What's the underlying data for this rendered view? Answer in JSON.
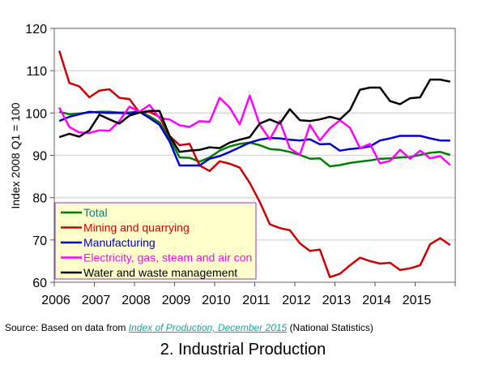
{
  "chart_data": {
    "type": "line",
    "title": "2. Industrial Production",
    "ylabel": "Index 2008 Q1 = 100",
    "xlabel": "",
    "ylim": [
      60,
      120
    ],
    "yticks": [
      "60",
      "70",
      "80",
      "90",
      "100",
      "110",
      "120"
    ],
    "xticks": [
      "2006",
      "2007",
      "2008",
      "2009",
      "2010",
      "2011",
      "2012",
      "2013",
      "2014",
      "2015"
    ],
    "x_unit": "quarter, 2006 Q1 to 2015 Q4",
    "grid": "horizontal",
    "legend_position": "bottom-left",
    "series": [
      {
        "name": "Total",
        "color": "#008000",
        "label_color": "#008080",
        "values": [
          100.3,
          99.7,
          99.9,
          100.1,
          100.3,
          100.3,
          100.1,
          100.1,
          100.4,
          99.2,
          97.8,
          94.0,
          89.5,
          89.4,
          88.5,
          89.5,
          91.1,
          92.1,
          92.7,
          93.0,
          92.4,
          91.5,
          91.3,
          90.8,
          90.1,
          89.2,
          89.3,
          87.4,
          87.7,
          88.2,
          88.5,
          88.8,
          89.2,
          89.3,
          89.5,
          89.6,
          90.1,
          90.6,
          90.8,
          90.1
        ]
      },
      {
        "name": "Mining and quarrying",
        "color": "#cc0000",
        "label_color": "#cc0000",
        "values": [
          114.7,
          107.1,
          106.3,
          103.7,
          105.3,
          105.6,
          103.6,
          103.3,
          100.1,
          100.3,
          99.1,
          94.6,
          92.4,
          92.7,
          87.6,
          86.3,
          88.6,
          88.0,
          87.1,
          83.5,
          79.0,
          73.7,
          72.8,
          72.3,
          69.2,
          67.4,
          67.7,
          61.2,
          62.0,
          64.0,
          65.8,
          65.0,
          64.4,
          64.6,
          62.9,
          63.3,
          64.0,
          69.0,
          70.4,
          68.8
        ]
      },
      {
        "name": "Manufacturing",
        "color": "#0000cc",
        "label_color": "#0000cc",
        "values": [
          98.1,
          99.1,
          99.7,
          100.3,
          100.1,
          100.0,
          100.0,
          99.9,
          100.3,
          98.8,
          97.2,
          93.3,
          87.6,
          87.6,
          87.6,
          89.2,
          89.8,
          90.8,
          91.9,
          93.0,
          93.7,
          94.1,
          94.0,
          93.7,
          93.5,
          93.8,
          92.6,
          92.7,
          91.1,
          91.5,
          91.7,
          92.1,
          93.5,
          94.0,
          94.6,
          94.6,
          94.6,
          94.0,
          93.5,
          93.5
        ]
      },
      {
        "name": "Electricity, gas, steam and air con",
        "color": "#ff00ff",
        "label_color": "#ff00ff",
        "values": [
          101.3,
          96.7,
          95.4,
          95.3,
          95.9,
          95.8,
          98.1,
          101.5,
          100.3,
          101.9,
          98.8,
          98.5,
          97.1,
          96.7,
          98.1,
          97.9,
          103.6,
          101.3,
          97.3,
          104.1,
          97.2,
          93.8,
          98.1,
          91.7,
          90.1,
          97.2,
          93.5,
          96.4,
          98.3,
          96.5,
          91.7,
          92.7,
          88.1,
          88.7,
          91.3,
          89.2,
          91.1,
          89.3,
          89.8,
          87.7
        ]
      },
      {
        "name": "Water and waste management",
        "color": "#000000",
        "label_color": "#000000",
        "values": [
          94.3,
          95.1,
          94.4,
          95.9,
          99.6,
          98.5,
          97.5,
          99.4,
          100.1,
          100.5,
          100.5,
          94.6,
          90.8,
          91.1,
          91.3,
          91.9,
          91.7,
          93.0,
          93.7,
          94.3,
          97.5,
          98.5,
          97.5,
          100.9,
          98.3,
          98.1,
          98.5,
          99.1,
          98.5,
          100.7,
          105.5,
          106.0,
          106.0,
          102.8,
          102.1,
          103.5,
          103.7,
          107.9,
          107.9,
          107.4
        ]
      }
    ]
  },
  "source": {
    "prefix": "Source: Based on data from ",
    "link_text": "Index of Production, December 2015",
    "suffix": " (National Statistics)"
  },
  "colors": {
    "legend_bg": "#ffffcc",
    "legend_border": "#9933cc",
    "grid": "#d9d9d9",
    "link": "#1aa39a"
  }
}
